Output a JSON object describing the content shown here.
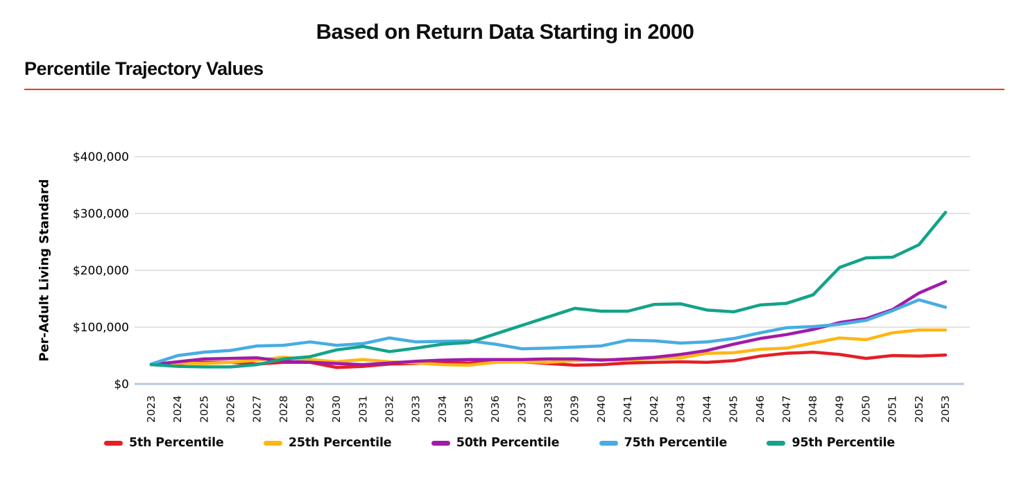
{
  "header": {
    "title": "Based on Return Data Starting in 2000",
    "subtitle": "Percentile Trajectory Values"
  },
  "colors": {
    "rule_red": "#f4361f",
    "gridline": "#d9d9d9",
    "zero_axis": "#b6c9e2",
    "text": "#0d0d0d"
  },
  "chart_data": {
    "type": "line",
    "title": "Based on Return Data Starting in 2000",
    "subtitle": "Percentile Trajectory Values",
    "xlabel": "",
    "ylabel": "Per-Adult Living Standard",
    "ylim": [
      0,
      400000
    ],
    "grid": true,
    "legend_position": "bottom",
    "y_ticks": [
      {
        "value": 0,
        "label": "$0"
      },
      {
        "value": 100000,
        "label": "$100,000"
      },
      {
        "value": 200000,
        "label": "$200,000"
      },
      {
        "value": 300000,
        "label": "$300,000"
      },
      {
        "value": 400000,
        "label": "$400,000"
      }
    ],
    "x": [
      2023,
      2024,
      2025,
      2026,
      2027,
      2028,
      2029,
      2030,
      2031,
      2032,
      2033,
      2034,
      2035,
      2036,
      2037,
      2038,
      2039,
      2040,
      2041,
      2042,
      2043,
      2044,
      2045,
      2046,
      2047,
      2048,
      2049,
      2050,
      2051,
      2052,
      2053
    ],
    "series": [
      {
        "name": "5th Percentile",
        "color": "#e41f26",
        "values": [
          34000,
          36000,
          38000,
          38000,
          35000,
          38000,
          38000,
          29000,
          31000,
          35000,
          36000,
          38000,
          37000,
          40000,
          39000,
          36000,
          33000,
          34000,
          37000,
          38000,
          39000,
          38000,
          41000,
          49000,
          54000,
          56000,
          52000,
          45000,
          50000,
          49000,
          51000
        ]
      },
      {
        "name": "25th Percentile",
        "color": "#fdb714",
        "values": [
          34000,
          37000,
          36000,
          38000,
          42000,
          47000,
          43000,
          39000,
          43000,
          39000,
          37000,
          34000,
          33000,
          38000,
          39000,
          38000,
          41000,
          43000,
          42000,
          45000,
          46000,
          54000,
          55000,
          61000,
          63000,
          72000,
          81000,
          78000,
          90000,
          95000,
          95000
        ]
      },
      {
        "name": "50th Percentile",
        "color": "#a11ba9",
        "values": [
          34000,
          39000,
          44000,
          45000,
          46000,
          40000,
          38000,
          36000,
          34000,
          37000,
          40000,
          42000,
          43000,
          43000,
          43000,
          44000,
          44000,
          42000,
          44000,
          47000,
          52000,
          59000,
          70000,
          80000,
          87000,
          96000,
          108000,
          115000,
          131000,
          160000,
          180000
        ]
      },
      {
        "name": "75th Percentile",
        "color": "#47ace3",
        "values": [
          35000,
          50000,
          56000,
          59000,
          67000,
          68000,
          74000,
          68000,
          71000,
          81000,
          74000,
          75000,
          76000,
          70000,
          62000,
          63000,
          65000,
          67000,
          77000,
          76000,
          72000,
          74000,
          80000,
          90000,
          99000,
          101000,
          105000,
          112000,
          129000,
          148000,
          135000
        ]
      },
      {
        "name": "95th Percentile",
        "color": "#13a38a",
        "values": [
          34000,
          31000,
          30000,
          30000,
          34000,
          44000,
          48000,
          60000,
          66000,
          57000,
          63000,
          70000,
          73000,
          88000,
          103000,
          118000,
          133000,
          128000,
          128000,
          140000,
          141000,
          130000,
          127000,
          139000,
          142000,
          157000,
          205000,
          222000,
          223000,
          245000,
          302000
        ]
      }
    ]
  }
}
